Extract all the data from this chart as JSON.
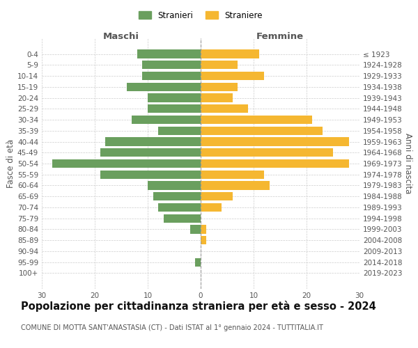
{
  "age_groups": [
    "0-4",
    "5-9",
    "10-14",
    "15-19",
    "20-24",
    "25-29",
    "30-34",
    "35-39",
    "40-44",
    "45-49",
    "50-54",
    "55-59",
    "60-64",
    "65-69",
    "70-74",
    "75-79",
    "80-84",
    "85-89",
    "90-94",
    "95-99",
    "100+"
  ],
  "birth_years": [
    "2019-2023",
    "2014-2018",
    "2009-2013",
    "2004-2008",
    "1999-2003",
    "1994-1998",
    "1989-1993",
    "1984-1988",
    "1979-1983",
    "1974-1978",
    "1969-1973",
    "1964-1968",
    "1959-1963",
    "1954-1958",
    "1949-1953",
    "1944-1948",
    "1939-1943",
    "1934-1938",
    "1929-1933",
    "1924-1928",
    "≤ 1923"
  ],
  "males": [
    12,
    11,
    11,
    14,
    10,
    10,
    13,
    8,
    18,
    19,
    28,
    19,
    10,
    9,
    8,
    7,
    2,
    0,
    0,
    1,
    0
  ],
  "females": [
    11,
    7,
    12,
    7,
    6,
    9,
    21,
    23,
    28,
    25,
    28,
    12,
    13,
    6,
    4,
    0,
    1,
    1,
    0,
    0,
    0
  ],
  "male_color": "#6a9f5e",
  "female_color": "#f5b731",
  "background_color": "#ffffff",
  "grid_color": "#cccccc",
  "title": "Popolazione per cittadinanza straniera per età e sesso - 2024",
  "subtitle": "COMUNE DI MOTTA SANT'ANASTASIA (CT) - Dati ISTAT al 1° gennaio 2024 - TUTTITALIA.IT",
  "xlabel_left": "Maschi",
  "xlabel_right": "Femmine",
  "ylabel_left": "Fasce di età",
  "ylabel_right": "Anni di nascita",
  "legend_males": "Stranieri",
  "legend_females": "Straniere",
  "xlim": 30,
  "title_fontsize": 10.5,
  "subtitle_fontsize": 7.0,
  "axis_label_fontsize": 8.5,
  "tick_fontsize": 7.5
}
